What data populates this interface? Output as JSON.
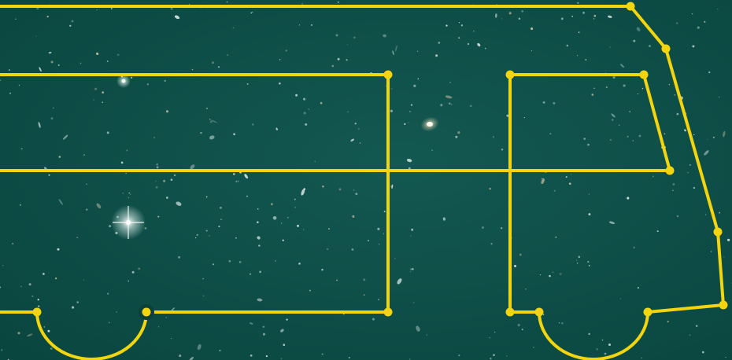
{
  "illustration": {
    "subject": "bus-outline-over-deep-field",
    "colors": {
      "background": "#0b4a44",
      "background_light": "#16625b",
      "line": "#f2d40f",
      "star": "#eaf4f1",
      "galaxy_warm": "#d9c9a8",
      "dark_knot": "#0d3f3a"
    }
  }
}
